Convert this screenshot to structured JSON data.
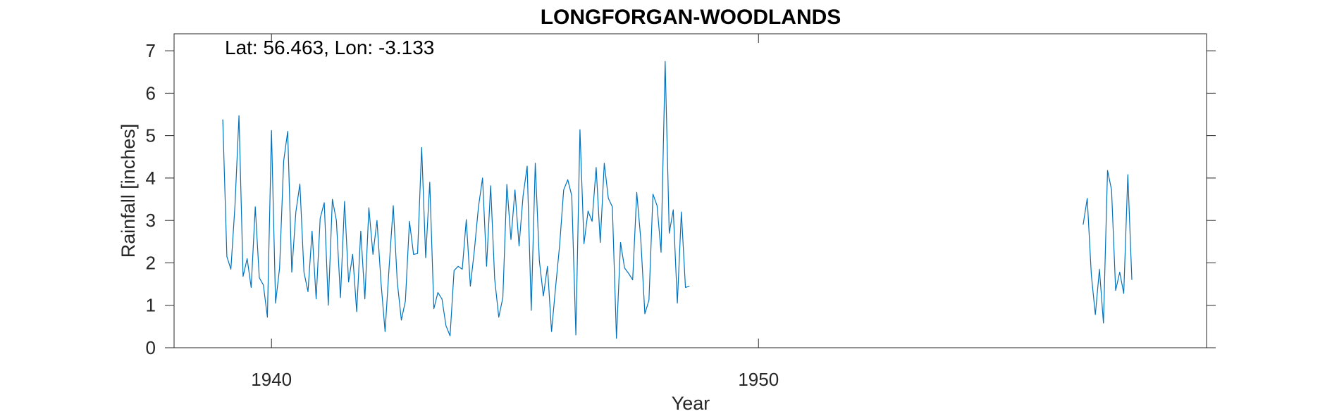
{
  "chart_data": {
    "type": "line",
    "title": "LONGFORGAN-WOODLANDS",
    "xlabel": "Year",
    "ylabel": "Rainfall [inches]",
    "annotation": "Lat: 56.463, Lon: -3.133",
    "xlim": [
      1938,
      1959.2
    ],
    "ylim": [
      0,
      7.4
    ],
    "xticks": [
      1940,
      1950
    ],
    "yticks": [
      0,
      1,
      2,
      3,
      4,
      5,
      6,
      7
    ],
    "grid": false,
    "line_color": "#0072BD",
    "axes_color": "#262626",
    "series": [
      {
        "segments": [
          {
            "start_year": 1939,
            "start_month": 1,
            "values": [
              5.38,
              2.15,
              1.85,
              3.35,
              5.47,
              1.68,
              2.1,
              1.42,
              3.32,
              1.65,
              1.48,
              0.72,
              5.12,
              1.05,
              1.88,
              4.4,
              5.1,
              1.78,
              3.2,
              3.86,
              1.78,
              1.32,
              2.75,
              1.15,
              3.05,
              3.42,
              1.0,
              3.5,
              3.0,
              1.18,
              3.45,
              1.55,
              2.2,
              0.85,
              2.75,
              1.15,
              3.3,
              2.2,
              3.0,
              1.52,
              0.38,
              1.92,
              3.35,
              1.55,
              0.65,
              1.1,
              2.98,
              2.2,
              2.22,
              4.72,
              2.12,
              3.9,
              0.92,
              1.3,
              1.15,
              0.52,
              0.28,
              1.82,
              1.92,
              1.85,
              3.02,
              1.45,
              2.3,
              3.32,
              4.0,
              1.92,
              3.82,
              1.62,
              0.72,
              1.18,
              3.85,
              2.55,
              3.72,
              2.4,
              3.58,
              4.28,
              0.88,
              4.35,
              2.05,
              1.22,
              1.92,
              0.38,
              1.42,
              2.42,
              3.72,
              3.96,
              3.58,
              0.3,
              5.14,
              2.45,
              3.22,
              2.98,
              4.25,
              2.48,
              4.35,
              3.52,
              3.32,
              0.22,
              2.48,
              1.88,
              1.75,
              1.6,
              3.66,
              2.56,
              0.8,
              1.12,
              3.62,
              3.35,
              2.25,
              6.75,
              2.7,
              3.25,
              1.05,
              3.2,
              1.42,
              1.45
            ]
          },
          {
            "start_year": 1956,
            "start_month": 9,
            "values": [
              2.9,
              3.52,
              1.72,
              0.78,
              1.85,
              0.58,
              4.18,
              3.72,
              1.35,
              1.78,
              1.28,
              4.08,
              1.6
            ]
          }
        ]
      }
    ]
  }
}
